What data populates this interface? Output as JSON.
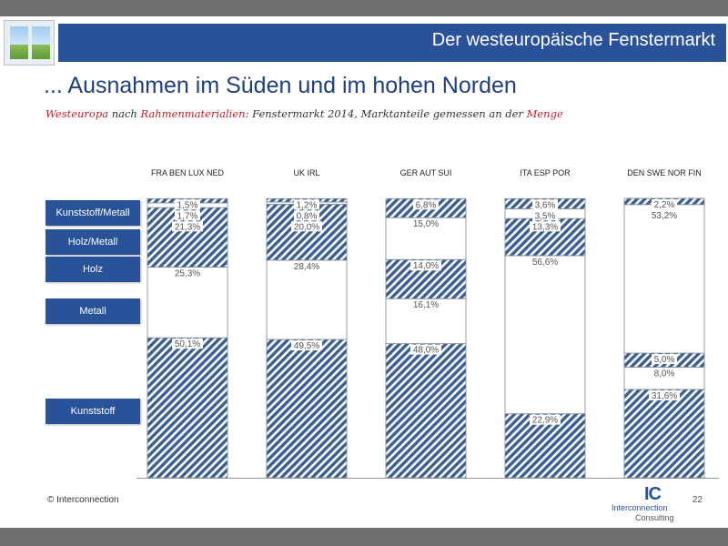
{
  "header": {
    "title": "Der westeuropäische Fenstermarkt"
  },
  "main_title": "... Ausnahmen im Süden und im hohen Norden",
  "subtitle": {
    "part1": "Westeuropa",
    "part2": " nach ",
    "part3": "Rahmenmaterialien",
    "part4": ": Fenstermarkt 2014, Marktanteile gemessen an der ",
    "part5": "Menge"
  },
  "footer": {
    "copyright": "© Interconnection",
    "page_number": "22"
  },
  "logo": {
    "mark": "IC",
    "line1": "Interconnection",
    "line2": "Consulting"
  },
  "colors": {
    "header": "#2a5299",
    "hatch": "#3b5f8e",
    "accent_red": "#c0202a"
  },
  "chart_data": {
    "type": "bar",
    "stacked": true,
    "unit": "%",
    "categories": [
      "FRA BEN LUX NED",
      "UK IRL",
      "GER AUT SUI",
      "ITA ESP POR",
      "DEN SWE NOR FIN"
    ],
    "series": [
      {
        "name": "Kunststoff",
        "fill": "hatched",
        "values": [
          50.1,
          49.5,
          48.0,
          22.9,
          31.6
        ],
        "labels": [
          "50,1%",
          "49,5%",
          "48,0%",
          "22,9%",
          "31,6%"
        ]
      },
      {
        "name": "Metall",
        "fill": "white",
        "values": [
          25.3,
          28.4,
          16.1,
          56.6,
          8.0
        ],
        "labels": [
          "25,3%",
          "28,4%",
          "16,1%",
          "56,6%",
          "8,0%"
        ]
      },
      {
        "name": "Holz",
        "fill": "hatched",
        "values": [
          21.3,
          20.0,
          14.0,
          13.3,
          5.0
        ],
        "labels": [
          "21,3%",
          "20,0%",
          "14,0%",
          "13,3%",
          "5,0%"
        ]
      },
      {
        "name": "Holz/Metall",
        "fill": "white",
        "values": [
          1.7,
          0.8,
          15.0,
          3.5,
          53.2
        ],
        "labels": [
          "1,7%",
          "0,8%",
          "15,0%",
          "3,5%",
          "53,2%"
        ]
      },
      {
        "name": "Kunststoff/Metall",
        "fill": "hatched",
        "values": [
          1.5,
          1.2,
          6.8,
          3.6,
          2.2
        ],
        "labels": [
          "1,5%",
          "1,2%",
          "6,8%",
          "3,6%",
          "2,2%"
        ]
      }
    ],
    "legend_order": [
      "Kunststoff/Metall",
      "Holz/Metall",
      "Holz",
      "Metall",
      "Kunststoff"
    ],
    "legend_position": "left",
    "ylim": [
      0,
      100
    ],
    "grid": false
  }
}
